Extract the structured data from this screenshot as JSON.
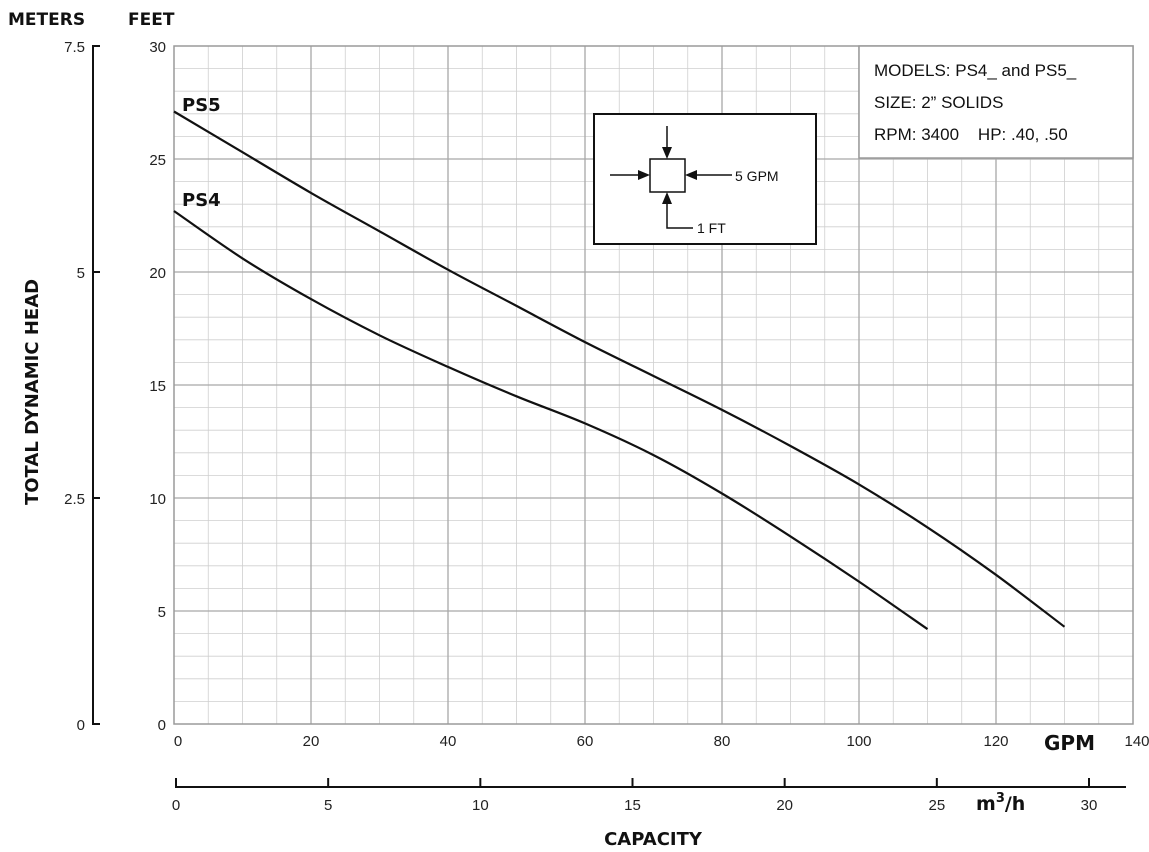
{
  "chart_data": {
    "type": "line",
    "left_axis_units": [
      "METERS",
      "FEET"
    ],
    "ylabel": "TOTAL DYNAMIC HEAD",
    "xlabel": "CAPACITY",
    "x_unit_gpm": "GPM",
    "x_unit_m3h": "m3/h",
    "xlim_gpm": [
      0,
      140
    ],
    "ylim_feet": [
      0,
      30
    ],
    "xlim_m3h": [
      0,
      30
    ],
    "ylim_meters": [
      0,
      7.5
    ],
    "x_ticks_gpm": [
      "0",
      "20",
      "40",
      "60",
      "80",
      "100",
      "120",
      "140"
    ],
    "x_ticks_m3h": [
      "0",
      "5",
      "10",
      "15",
      "20",
      "25",
      "30"
    ],
    "y_ticks_feet": [
      "0",
      "5",
      "10",
      "15",
      "20",
      "25",
      "30"
    ],
    "y_ticks_meters": [
      "0",
      "2.5",
      "5",
      "7.5"
    ],
    "grid": true,
    "info_box": [
      "MODELS: PS4_ and PS5_",
      "SIZE: 2” SOLIDS",
      "RPM: 3400    HP: .40, .50"
    ],
    "grid_key": {
      "gpm_label": "5 GPM",
      "ft_label": "1 FT"
    },
    "series": [
      {
        "name": "PS5",
        "color": "#111111",
        "x": [
          0,
          10,
          20,
          30,
          40,
          50,
          60,
          70,
          80,
          90,
          100,
          110,
          120,
          130
        ],
        "y": [
          27.1,
          25.3,
          23.5,
          21.8,
          20.1,
          18.5,
          16.9,
          15.4,
          13.9,
          12.3,
          10.6,
          8.7,
          6.6,
          4.3
        ]
      },
      {
        "name": "PS4",
        "color": "#111111",
        "x": [
          0,
          10,
          20,
          30,
          40,
          50,
          60,
          70,
          80,
          90,
          100,
          110
        ],
        "y": [
          22.7,
          20.6,
          18.8,
          17.2,
          15.8,
          14.5,
          13.3,
          11.9,
          10.2,
          8.3,
          6.3,
          4.2
        ]
      }
    ]
  }
}
